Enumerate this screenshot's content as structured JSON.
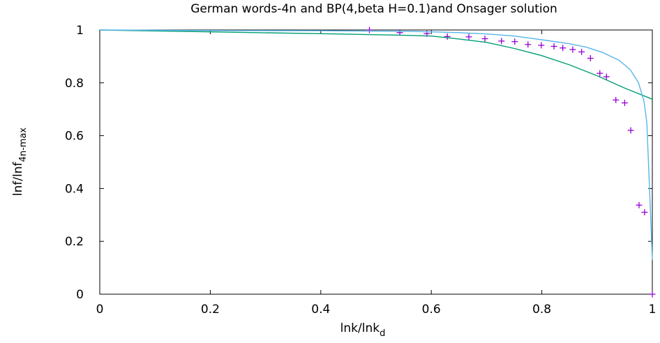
{
  "chart_data": {
    "type": "line",
    "title": "German words-4n and BP(4,beta H=0.1)and Onsager solution",
    "xlabel": "lnk/lnk",
    "xlabel_sub": "d",
    "ylabel": "lnf/lnf",
    "ylabel_sub": "4n-max",
    "xlim": [
      0,
      1
    ],
    "ylim": [
      0,
      1
    ],
    "x_ticks": [
      "0",
      "0.2",
      "0.4",
      "0.6",
      "0.8",
      "1"
    ],
    "y_ticks": [
      "0",
      "0.2",
      "0.4",
      "0.6",
      "0.8",
      "1"
    ],
    "x_tick_values": [
      0,
      0.2,
      0.4,
      0.6,
      0.8,
      1
    ],
    "y_tick_values": [
      0,
      0.2,
      0.4,
      0.6,
      0.8,
      1
    ],
    "grid": false,
    "legend": "none",
    "series": [
      {
        "style": "points",
        "marker": "+",
        "color": "#9400d3",
        "x": [
          0.488,
          0.543,
          0.592,
          0.629,
          0.668,
          0.697,
          0.727,
          0.751,
          0.775,
          0.799,
          0.822,
          0.838,
          0.856,
          0.872,
          0.888,
          0.905,
          0.917,
          0.934,
          0.95,
          0.961,
          0.976,
          0.986,
          1.0
        ],
        "y": [
          1.0,
          0.99,
          0.986,
          0.975,
          0.974,
          0.967,
          0.958,
          0.956,
          0.945,
          0.942,
          0.938,
          0.932,
          0.926,
          0.917,
          0.893,
          0.836,
          0.823,
          0.735,
          0.724,
          0.62,
          0.337,
          0.31,
          0.0
        ]
      },
      {
        "style": "line",
        "color": "#009e73",
        "x": [
          0.0,
          0.2,
          0.4,
          0.5,
          0.55,
          0.6,
          0.65,
          0.7,
          0.75,
          0.8,
          0.85,
          0.9,
          0.95,
          1.0
        ],
        "y": [
          1.0,
          0.993,
          0.986,
          0.982,
          0.98,
          0.977,
          0.966,
          0.953,
          0.93,
          0.903,
          0.868,
          0.827,
          0.78,
          0.738
        ]
      },
      {
        "style": "line",
        "color": "#56b4e9",
        "x": [
          0.0,
          0.2,
          0.4,
          0.55,
          0.6,
          0.65,
          0.7,
          0.75,
          0.8,
          0.85,
          0.88,
          0.91,
          0.94,
          0.96,
          0.975,
          0.985,
          0.99,
          0.995,
          1.0
        ],
        "y": [
          1.0,
          0.998,
          0.997,
          0.995,
          0.993,
          0.99,
          0.985,
          0.977,
          0.963,
          0.948,
          0.935,
          0.915,
          0.885,
          0.85,
          0.8,
          0.73,
          0.65,
          0.4,
          0.13
        ]
      }
    ]
  }
}
